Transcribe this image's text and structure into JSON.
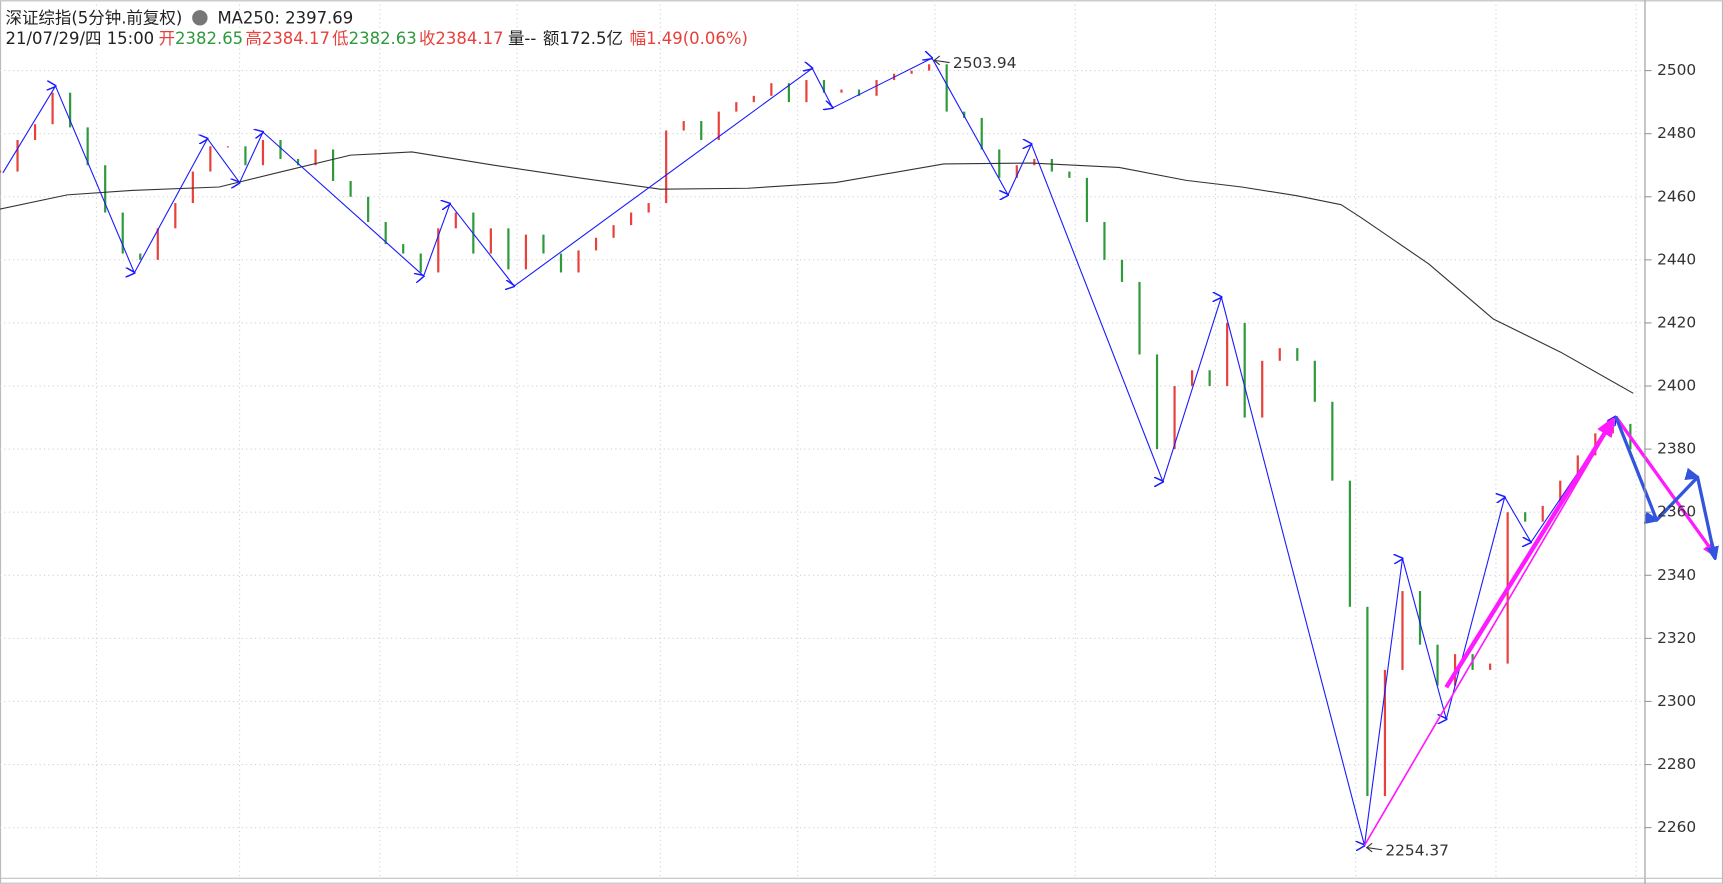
{
  "chart_data": {
    "type": "stock",
    "title": "深证综指(5分钟.前复权)",
    "ma_label": "MA250: 2397.69",
    "info": {
      "date": "21/07/29/四 15:00",
      "fields": [
        {
          "label": "开",
          "value": "2382.65",
          "color": "#2e9a3b"
        },
        {
          "label": "高",
          "value": "2384.17",
          "color": "#e8413c"
        },
        {
          "label": "低",
          "value": "2382.63",
          "color": "#2e9a3b"
        },
        {
          "label": "收",
          "value": "2384.17",
          "color": "#e8413c"
        }
      ],
      "volume": "量--",
      "amount": "额172.5亿",
      "change_label": "幅",
      "change": "1.49(0.06%)",
      "change_color": "#e8413c"
    },
    "xlim": [
      0,
      563
    ],
    "ylim": [
      2243.6,
      2522.3
    ],
    "yticks": [
      2260,
      2280,
      2300,
      2320,
      2340,
      2360,
      2380,
      2400,
      2420,
      2440,
      2460,
      2480,
      2500
    ],
    "xgrid": [
      33,
      82,
      130,
      177,
      226,
      273,
      320,
      368,
      416,
      464,
      512,
      560
    ],
    "price": {
      "up_color": "#e8413c",
      "down_color": "#2e9a3b",
      "x": [
        0,
        6,
        12,
        18,
        24,
        30,
        36,
        42,
        48,
        54,
        60,
        66,
        72,
        78,
        84,
        90,
        96,
        102,
        108,
        114,
        120,
        126,
        132,
        138,
        144,
        150,
        156,
        162,
        168,
        174,
        180,
        186,
        192,
        198,
        204,
        210,
        216,
        222,
        228,
        234,
        240,
        246,
        252,
        258,
        264,
        270,
        276,
        282,
        288,
        294,
        300,
        306,
        312,
        318,
        324,
        330,
        336,
        342,
        348,
        354,
        360,
        366,
        372,
        378,
        384,
        390,
        396,
        402,
        408,
        414,
        420,
        426,
        432,
        438,
        444,
        450,
        456,
        462,
        468,
        474,
        480,
        486,
        492,
        498,
        504,
        510,
        516,
        522,
        528,
        534,
        540,
        546,
        552,
        558
      ],
      "values": [
        2468,
        2478,
        2483,
        2493,
        2482,
        2470,
        2455,
        2442,
        2440,
        2450,
        2458,
        2468,
        2476,
        2476,
        2470,
        2478,
        2472,
        2470,
        2475,
        2465,
        2460,
        2452,
        2445,
        2442,
        2436,
        2450,
        2455,
        2442,
        2450,
        2437,
        2448,
        2442,
        2436,
        2443,
        2447,
        2451,
        2455,
        2458,
        2481,
        2484,
        2478,
        2487,
        2490,
        2492,
        2496,
        2490,
        2497,
        2493,
        2494,
        2492,
        2497,
        2499,
        2500,
        2502,
        2487,
        2485,
        2475,
        2466,
        2470,
        2472,
        2468,
        2466,
        2452,
        2440,
        2433,
        2410,
        2380,
        2400,
        2405,
        2400,
        2420,
        2390,
        2408,
        2412,
        2408,
        2395,
        2370,
        2330,
        2270,
        2310,
        2335,
        2318,
        2305,
        2315,
        2310,
        2312,
        2360,
        2357,
        2362,
        2370,
        2378,
        2385,
        2388,
        2380
      ]
    },
    "series": [
      {
        "color": "#333333",
        "width": 1,
        "arrows": false,
        "x": [
          0,
          23,
          45,
          75,
          98,
          120,
          141,
          169,
          199,
          226,
          256,
          286,
          323,
          353,
          383,
          406,
          425,
          444,
          459,
          466,
          489,
          511,
          534,
          559
        ],
        "values": [
          2456.1,
          2460.6,
          2462.0,
          2463.1,
          2468.3,
          2473.2,
          2474.2,
          2470.0,
          2465.9,
          2462.4,
          2462.7,
          2464.5,
          2470.4,
          2470.7,
          2469.3,
          2465.2,
          2463.1,
          2460.3,
          2457.5,
          2453.3,
          2438.7,
          2421.3,
          2410.8,
          2397.69
        ]
      },
      {
        "color": "#1a1aff",
        "width": 1,
        "arrows": true,
        "x": [
          1,
          19,
          46,
          71,
          82,
          90,
          145,
          154,
          176,
          278,
          285,
          319,
          345,
          353,
          398,
          418,
          467,
          480,
          495,
          515,
          524,
          553
        ],
        "values": [
          2467.6,
          2495.1,
          2435.9,
          2478.4,
          2464.5,
          2480.5,
          2434.9,
          2457.8,
          2431.7,
          2500.7,
          2488.2,
          2503.94,
          2460.6,
          2476.7,
          2369.7,
          2428.2,
          2254.37,
          2345.3,
          2294.4,
          2364.8,
          2350.5,
          2390.3
        ]
      },
      {
        "color": "#ff1aff",
        "width": 1.5,
        "arrows": false,
        "x": [
          467,
          553
        ],
        "values": [
          2254.37,
          2390.3
        ]
      },
      {
        "color": "#ff1aff",
        "width": 4,
        "arrows": true,
        "x": [
          495,
          552
        ],
        "values": [
          2304.5,
          2389.2
        ]
      },
      {
        "color": "#ff1aff",
        "width": 3,
        "arrows": true,
        "x": [
          553,
          587
        ],
        "values": [
          2390.3,
          2346.4
        ]
      },
      {
        "color": "#3355dd",
        "width": 3,
        "arrows": true,
        "x": [
          553,
          567,
          581,
          587
        ],
        "values": [
          2390.3,
          2357.5,
          2371.1,
          2345.3
        ]
      }
    ],
    "annotations": [
      {
        "label": "2503.94",
        "x": 319,
        "value": 2503.94
      },
      {
        "label": "2254.37",
        "x": 467,
        "value": 2254.37
      }
    ]
  }
}
